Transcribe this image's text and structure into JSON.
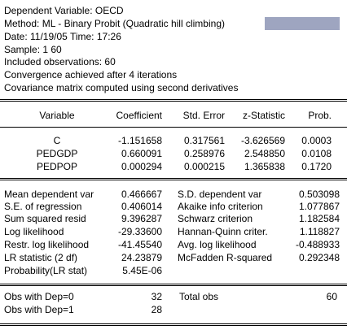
{
  "header": {
    "dependent_variable": "Dependent Variable: OECD",
    "method": "Method: ML - Binary Probit (Quadratic hill climbing)",
    "date_time": "Date: 11/19/05   Time: 17:26",
    "sample": "Sample: 1 60",
    "included_observations": "Included observations: 60",
    "convergence": "Convergence achieved after 4 iterations",
    "covariance": "Covariance matrix computed using second derivatives",
    "accent_color": "#9ea5c0"
  },
  "coef_table": {
    "columns": [
      "Variable",
      "Coefficient",
      "Std. Error",
      "z-Statistic",
      "Prob."
    ],
    "rows": [
      [
        "C",
        "-1.151658",
        "0.317561",
        "-3.626569",
        "0.0003"
      ],
      [
        "PEDGDP",
        "0.660091",
        "0.258976",
        "2.548850",
        "0.0108"
      ],
      [
        "PEDPOP",
        "0.000294",
        "0.000215",
        "1.365838",
        "0.1720"
      ]
    ]
  },
  "stats": {
    "left": [
      [
        "Mean dependent var",
        "0.466667"
      ],
      [
        "S.E. of regression",
        "0.406014"
      ],
      [
        "Sum squared resid",
        "9.396287"
      ],
      [
        "Log likelihood",
        "-29.33600"
      ],
      [
        "Restr. log likelihood",
        "-41.45540"
      ],
      [
        "LR statistic (2 df)",
        "24.23879"
      ],
      [
        "Probability(LR stat)",
        "5.45E-06"
      ]
    ],
    "right": [
      [
        "S.D. dependent var",
        "0.503098"
      ],
      [
        "Akaike info criterion",
        "1.077867"
      ],
      [
        "Schwarz criterion",
        "1.182584"
      ],
      [
        "Hannan-Quinn criter.",
        "1.118827"
      ],
      [
        "Avg. log likelihood",
        "-0.488933"
      ],
      [
        "McFadden R-squared",
        "0.292348"
      ]
    ]
  },
  "obs": {
    "dep0_label": "Obs with Dep=0",
    "dep0_value": "32",
    "dep1_label": "Obs with Dep=1",
    "dep1_value": "28",
    "total_label": "Total obs",
    "total_value": "60"
  }
}
